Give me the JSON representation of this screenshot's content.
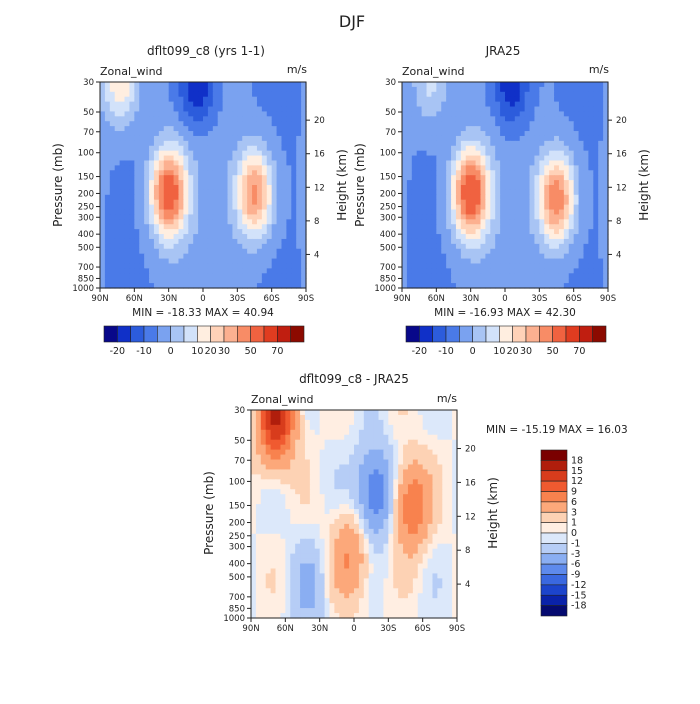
{
  "page": {
    "title": "DJF"
  },
  "panels": [
    {
      "id": "model",
      "title": "dflt099_c8 (yrs 1-1)",
      "left_label": "Zonal_wind",
      "right_label": "m/s",
      "stats": "MIN = -18.33   MAX =  40.94"
    },
    {
      "id": "obs",
      "title": "JRA25",
      "left_label": "Zonal_wind",
      "right_label": "m/s",
      "stats": "MIN = -16.93   MAX =  42.30"
    },
    {
      "id": "diff",
      "title": "dflt099_c8 - JRA25",
      "left_label": "Zonal_wind",
      "right_label": "m/s",
      "stats": "MIN = -15.19   MAX =  16.03"
    }
  ],
  "axes": {
    "ylabel_left": "Pressure (mb)",
    "ylabel_right": "Height (km)",
    "pressure_ticks": [
      "30",
      "50",
      "70",
      "100",
      "150",
      "200",
      "250",
      "300",
      "400",
      "500",
      "700",
      "850",
      "1000"
    ],
    "pressure_values": [
      30,
      50,
      70,
      100,
      150,
      200,
      250,
      300,
      400,
      500,
      700,
      850,
      1000
    ],
    "height_ticks": [
      "20",
      "16",
      "12",
      "8",
      "4"
    ],
    "height_values": [
      20,
      16,
      12,
      8,
      4
    ],
    "lat_ticks": [
      "90N",
      "60N",
      "30N",
      "0",
      "30S",
      "60S",
      "90S"
    ],
    "lat_values": [
      90,
      60,
      30,
      0,
      -30,
      -60,
      -90
    ]
  },
  "colorbars": {
    "full": {
      "labels": [
        "-20",
        "-10",
        "0",
        "10",
        "20",
        "30",
        "50",
        "70"
      ],
      "colors": [
        "#08088a",
        "#1030c8",
        "#2c5cdc",
        "#4a7ae8",
        "#7aa2f0",
        "#a8c4f4",
        "#d2e2fa",
        "#ffeee0",
        "#ffd2b8",
        "#fcb090",
        "#f88c66",
        "#f06240",
        "#e03c20",
        "#c01e10",
        "#8c0a00"
      ]
    },
    "diff": {
      "labels": [
        "18",
        "15",
        "12",
        "9",
        "6",
        "3",
        "1",
        "0",
        "-1",
        "-3",
        "-6",
        "-9",
        "-12",
        "-15",
        "-18"
      ],
      "colors": [
        "#7a0000",
        "#b01e0c",
        "#d83c1c",
        "#f05a30",
        "#f8824e",
        "#fca87a",
        "#fdd2b4",
        "#ffeee2",
        "#dce8fa",
        "#b6cdf6",
        "#8aaef2",
        "#5e8aec",
        "#3a68e0",
        "#1c44cc",
        "#0a22aa",
        "#050a70"
      ]
    }
  },
  "chart_data": [
    {
      "type": "heatmap",
      "title": "dflt099_c8 (yrs 1-1)",
      "xlabel": "",
      "ylabel": "Pressure (mb)",
      "y2label": "Height (km)",
      "units": "m/s",
      "xlim": [
        90,
        -90
      ],
      "ylim": [
        1000,
        30
      ],
      "levels": [
        -20,
        -10,
        0,
        10,
        20,
        30,
        50,
        70
      ],
      "min": -18.33,
      "max": 40.94,
      "features": [
        {
          "kind": "max",
          "lat": 30,
          "p": 200,
          "value": 40
        },
        {
          "kind": "max",
          "lat": -45,
          "p": 200,
          "value": 32
        },
        {
          "kind": "max",
          "lat": 72,
          "p": 30,
          "value": 20
        },
        {
          "kind": "min",
          "lat": 5,
          "p": 30,
          "value": -18
        }
      ]
    },
    {
      "type": "heatmap",
      "title": "JRA25",
      "xlabel": "",
      "ylabel": "Pressure (mb)",
      "y2label": "Height (km)",
      "units": "m/s",
      "xlim": [
        90,
        -90
      ],
      "ylim": [
        1000,
        30
      ],
      "levels": [
        -20,
        -10,
        0,
        10,
        20,
        30,
        50,
        70
      ],
      "min": -16.93,
      "max": 42.3,
      "features": [
        {
          "kind": "max",
          "lat": 30,
          "p": 200,
          "value": 42
        },
        {
          "kind": "max",
          "lat": -45,
          "p": 220,
          "value": 35
        },
        {
          "kind": "max",
          "lat": 65,
          "p": 30,
          "value": 12
        },
        {
          "kind": "min",
          "lat": -5,
          "p": 30,
          "value": -17
        }
      ]
    },
    {
      "type": "heatmap",
      "title": "dflt099_c8 - JRA25",
      "xlabel": "",
      "ylabel": "Pressure (mb)",
      "y2label": "Height (km)",
      "units": "m/s",
      "xlim": [
        90,
        -90
      ],
      "ylim": [
        1000,
        30
      ],
      "levels": [
        -18,
        -15,
        -12,
        -9,
        -6,
        -3,
        -1,
        0,
        1,
        3,
        6,
        9,
        12,
        15,
        18
      ],
      "min": -15.19,
      "max": 16.03,
      "features": [
        {
          "kind": "max",
          "lat": 68,
          "p": 35,
          "value": 15
        },
        {
          "kind": "max",
          "lat": -50,
          "p": 150,
          "value": 9
        },
        {
          "kind": "max",
          "lat": 3,
          "p": 350,
          "value": 6
        },
        {
          "kind": "min",
          "lat": -18,
          "p": 120,
          "value": -9
        },
        {
          "kind": "min",
          "lat": 40,
          "p": 600,
          "value": -3
        }
      ]
    }
  ]
}
